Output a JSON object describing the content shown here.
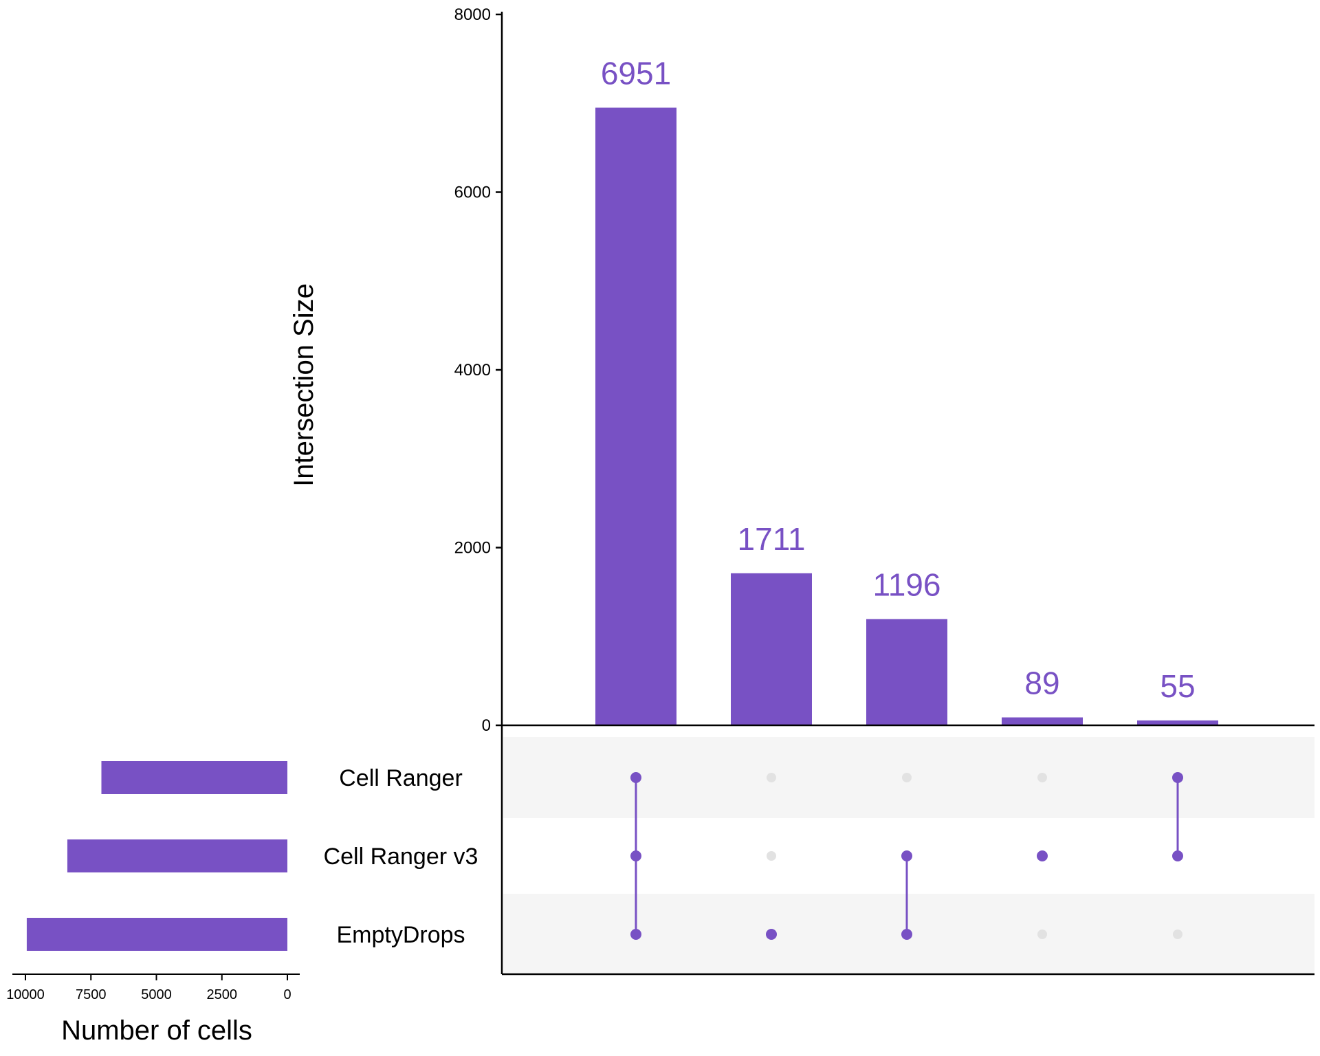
{
  "chart_data": {
    "type": "upset",
    "accent_color": "#7851c4",
    "inactive_dot_color": "#e2e2e2",
    "band_color": "#f5f5f5",
    "intersection_axis": {
      "label": "Intersection Size",
      "ylim": [
        0,
        8000
      ],
      "ticks": [
        "0",
        "2000",
        "4000",
        "6000",
        "8000"
      ]
    },
    "sets": [
      {
        "name": "Cell Ranger",
        "size": 7100
      },
      {
        "name": "Cell Ranger v3",
        "size": 8400
      },
      {
        "name": "EmptyDrops",
        "size": 9950
      }
    ],
    "set_size_axis": {
      "label": "Number of cells",
      "xlim": [
        10000,
        0
      ],
      "ticks": [
        "10000",
        "7500",
        "5000",
        "2500",
        "0"
      ]
    },
    "intersections": [
      {
        "label": "6951",
        "value": 6951,
        "members": [
          "Cell Ranger",
          "Cell Ranger v3",
          "EmptyDrops"
        ]
      },
      {
        "label": "1711",
        "value": 1711,
        "members": [
          "EmptyDrops"
        ]
      },
      {
        "label": "1196",
        "value": 1196,
        "members": [
          "Cell Ranger v3",
          "EmptyDrops"
        ]
      },
      {
        "label": "89",
        "value": 89,
        "members": [
          "Cell Ranger v3"
        ]
      },
      {
        "label": "55",
        "value": 55,
        "members": [
          "Cell Ranger",
          "Cell Ranger v3"
        ]
      }
    ]
  }
}
